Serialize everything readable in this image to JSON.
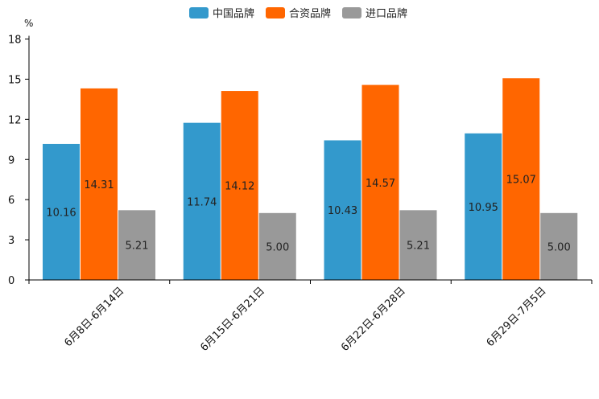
{
  "chart_data": {
    "type": "bar",
    "title": "",
    "xlabel": "",
    "ylabel": "",
    "y_unit": "%",
    "ylim": [
      0,
      18
    ],
    "yticks": [
      0,
      3,
      6,
      9,
      12,
      15,
      18
    ],
    "grid": false,
    "legend_position": "top-center",
    "categories": [
      "6月8日-6月14日",
      "6月15日-6月21日",
      "6月22日-6月28日",
      "6月29日-7月5日"
    ],
    "series": [
      {
        "name": "中国品牌",
        "color": "#3399CC",
        "values": [
          10.16,
          11.74,
          10.43,
          10.95
        ],
        "labels": [
          "10.16",
          "11.74",
          "10.43",
          "10.95"
        ]
      },
      {
        "name": "合资品牌",
        "color": "#FF6600",
        "values": [
          14.31,
          14.12,
          14.57,
          15.07
        ],
        "labels": [
          "14.31",
          "14.12",
          "14.57",
          "15.07"
        ]
      },
      {
        "name": "进口品牌",
        "color": "#999999",
        "values": [
          5.21,
          5.0,
          5.21,
          5.0
        ],
        "labels": [
          "5.21",
          "5.00",
          "5.21",
          "5.00"
        ]
      }
    ]
  }
}
